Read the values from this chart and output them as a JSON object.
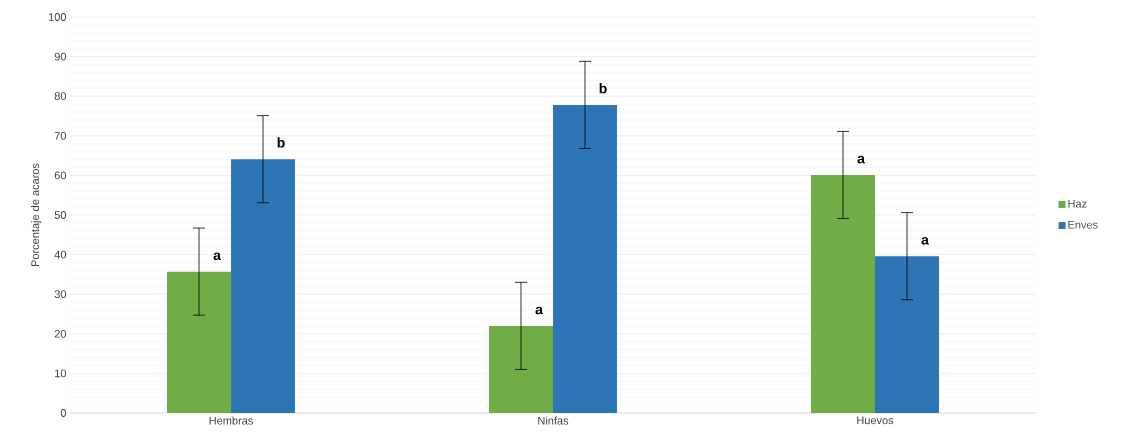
{
  "chart_data": {
    "type": "bar",
    "ylabel": "Porcentaje de acaros",
    "categories": [
      "Hembras",
      "Ninfas",
      "Huevos"
    ],
    "series": [
      {
        "name": "Haz",
        "color": "#70ad47",
        "values": [
          35.7,
          22,
          60.1
        ],
        "errors": [
          11,
          11,
          11
        ]
      },
      {
        "name": "Enves",
        "color": "#2e75b6",
        "values": [
          64.1,
          77.8,
          39.6
        ],
        "errors": [
          11,
          11,
          11
        ]
      }
    ],
    "ylim": [
      0,
      100
    ],
    "yticks": [
      0,
      10,
      20,
      30,
      40,
      50,
      60,
      70,
      80,
      90,
      100
    ],
    "grid": "y",
    "legend": "right",
    "annotations": [
      "a",
      "b",
      "a",
      "b",
      "a",
      "a"
    ]
  }
}
